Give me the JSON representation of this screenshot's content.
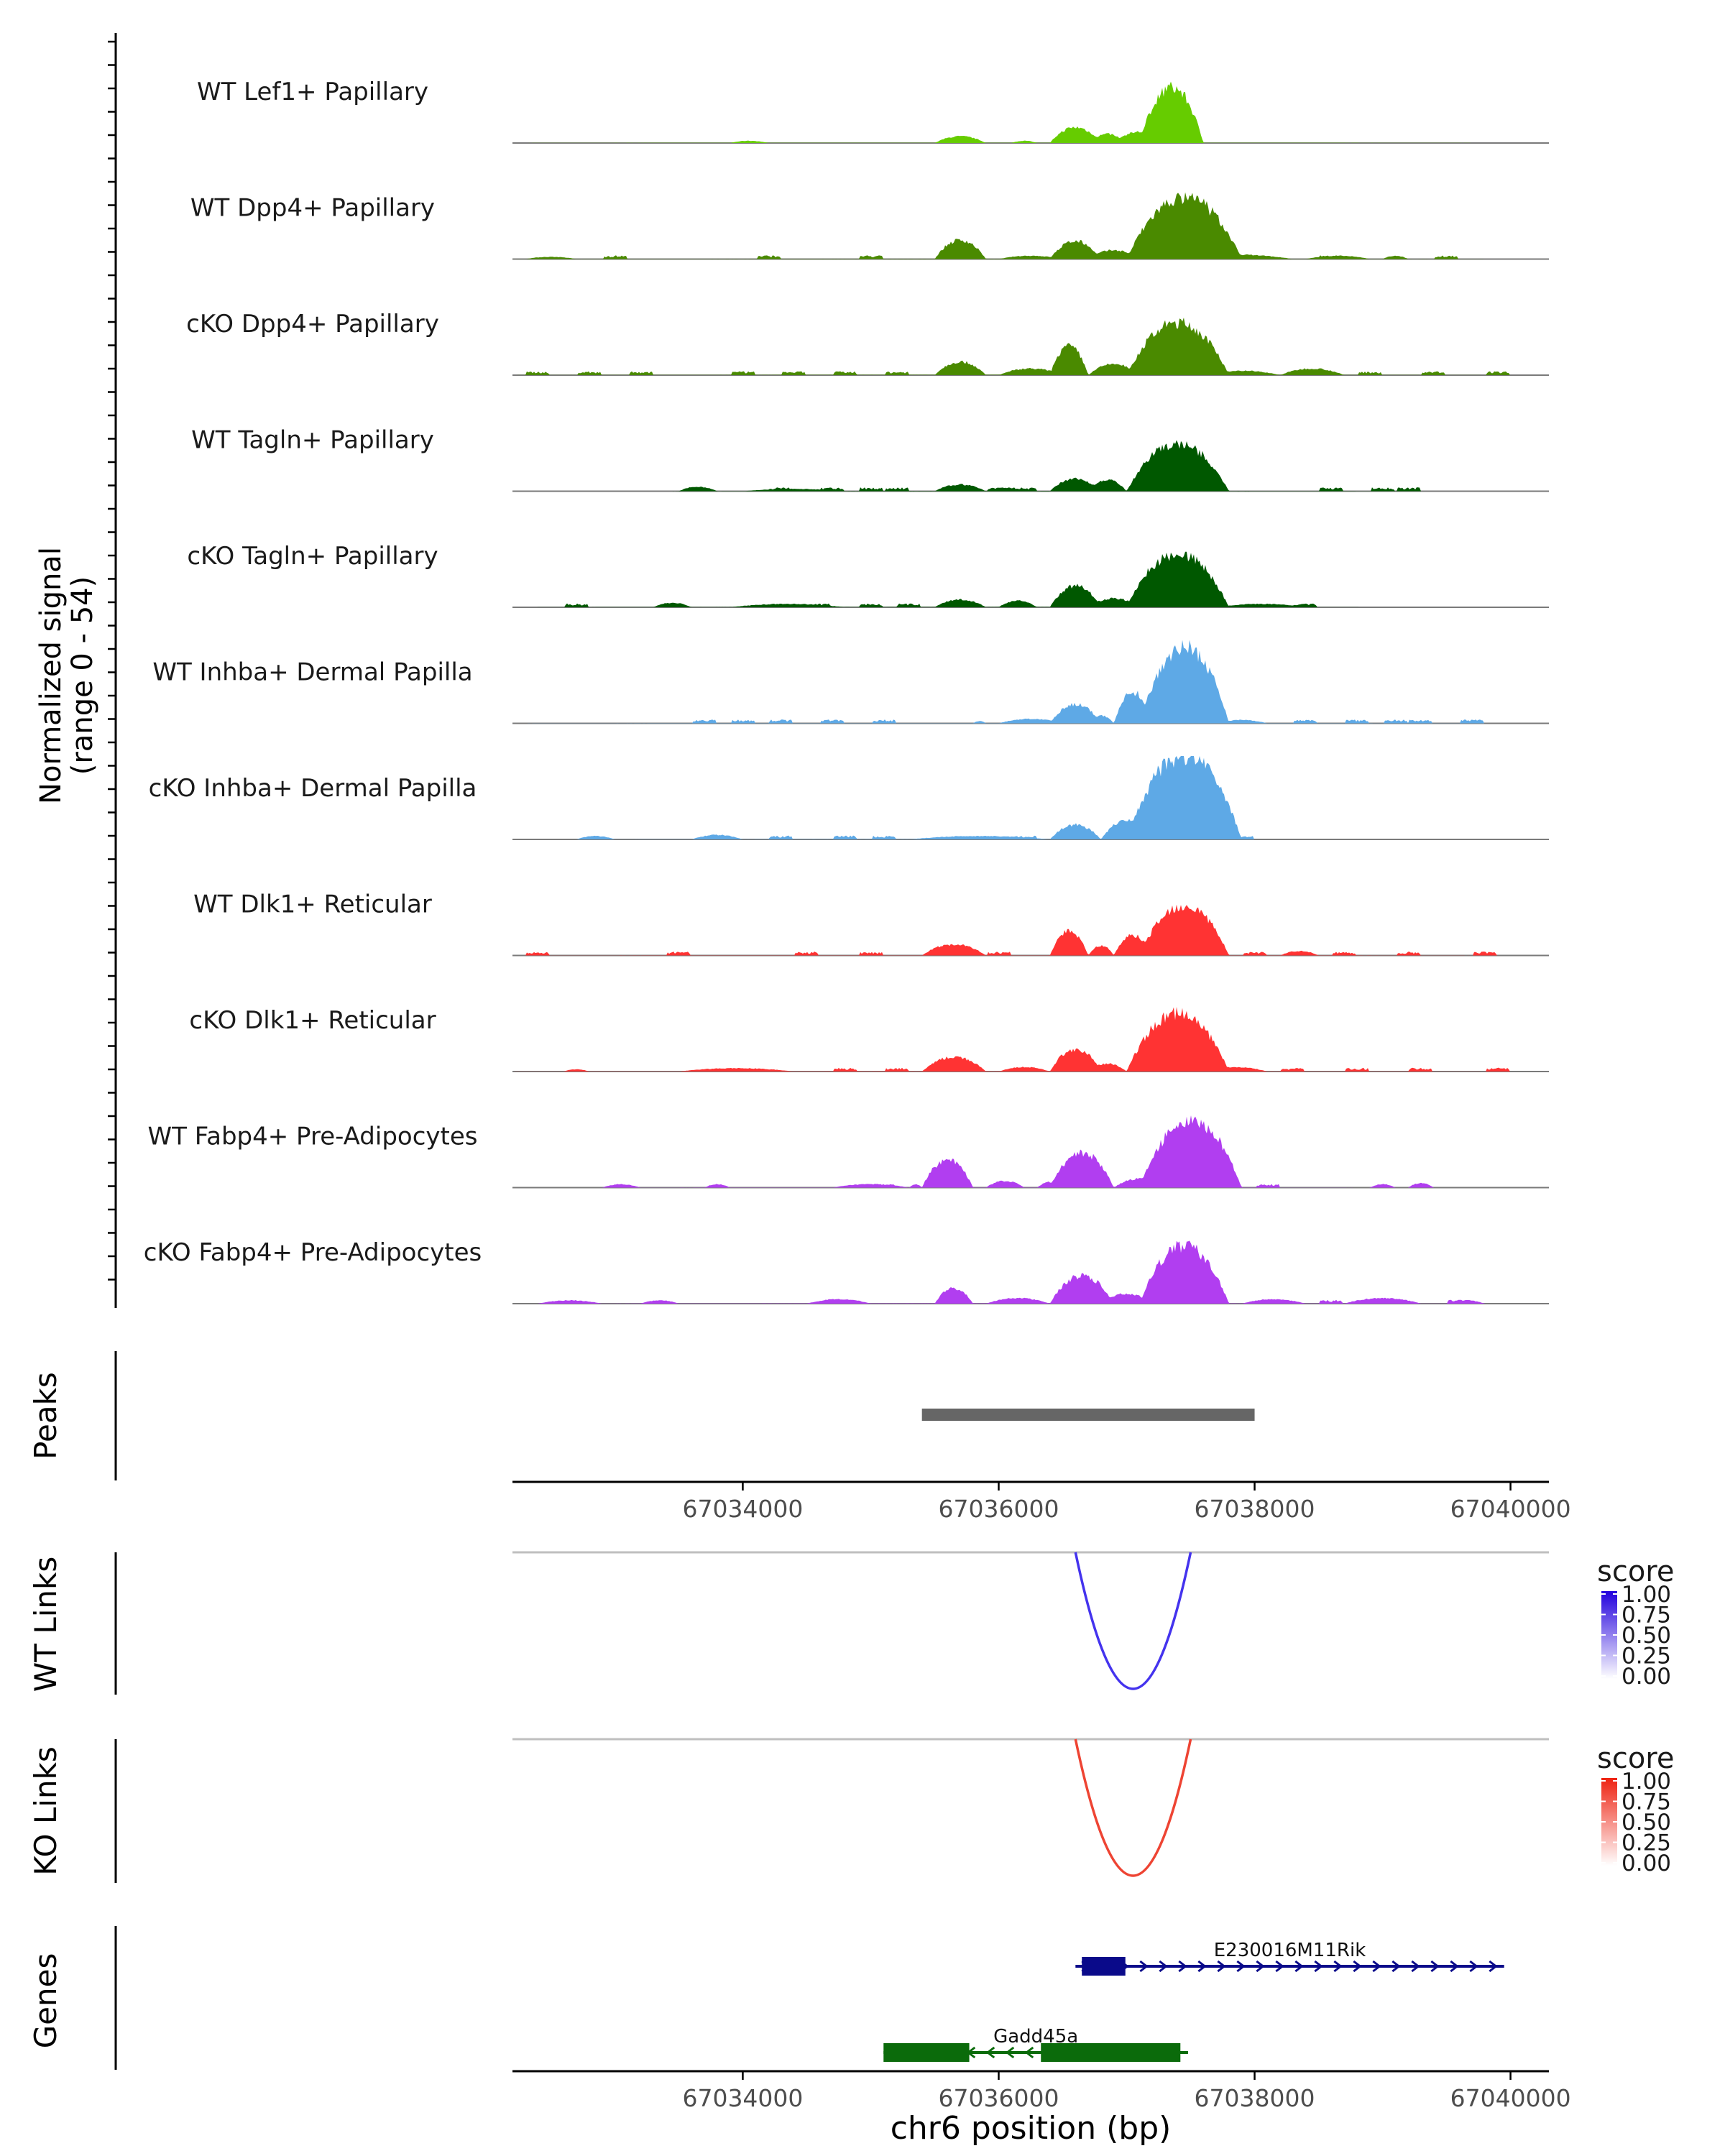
{
  "chart_data": {
    "type": "coverage",
    "genome": {
      "chromosome": "chr6",
      "xmin": 67032200,
      "xmax": 67040300
    },
    "signal_axis_label": "Normalized signal\n(range 0 - 54)",
    "signal_range": [
      0,
      54
    ],
    "tracks": [
      {
        "label": "WT Lef1+ Papillary",
        "color": "#66cc00",
        "regions": [
          [
            67032000,
            67040000,
            0.2
          ],
          [
            67033900,
            67034200,
            2
          ],
          [
            67035500,
            67035900,
            6
          ],
          [
            67036100,
            67036300,
            2
          ],
          [
            67036400,
            67036800,
            14
          ],
          [
            67036700,
            67037000,
            8
          ],
          [
            67037100,
            67037600,
            50
          ],
          [
            67036900,
            67037300,
            10
          ]
        ],
        "noise": []
      },
      {
        "label": "WT Dpp4+ Papillary",
        "color": "#4a8a00",
        "regions": [
          [
            67032000,
            67040000,
            0.3
          ],
          [
            67032300,
            67032700,
            2
          ],
          [
            67035500,
            67035900,
            17
          ],
          [
            67036000,
            67036500,
            3
          ],
          [
            67036400,
            67036800,
            16
          ],
          [
            67036700,
            67037100,
            8
          ],
          [
            67037000,
            67037900,
            55
          ],
          [
            67037400,
            67038300,
            4
          ],
          [
            67038400,
            67038900,
            3
          ],
          [
            67039000,
            67039200,
            3
          ]
        ],
        "noise": [
          67033000,
          67034200,
          67035000,
          67038600,
          67039500
        ]
      },
      {
        "label": "cKO Dpp4+ Papillary",
        "color": "#4a8a00",
        "regions": [
          [
            67032000,
            67040000,
            0.3
          ],
          [
            67035500,
            67035900,
            12
          ],
          [
            67036000,
            67036500,
            6
          ],
          [
            67036400,
            67036700,
            26
          ],
          [
            67036700,
            67037100,
            10
          ],
          [
            67037000,
            67037800,
            47
          ],
          [
            67037600,
            67038200,
            4
          ],
          [
            67038200,
            67038700,
            6
          ]
        ],
        "noise": [
          67032400,
          67032800,
          67033200,
          67034000,
          67034400,
          67034800,
          67035200,
          67038900,
          67039400,
          67039900
        ]
      },
      {
        "label": "WT Tagln+ Papillary",
        "color": "#005800",
        "regions": [
          [
            67033300,
            67039300,
            0.3
          ],
          [
            67033500,
            67033800,
            4
          ],
          [
            67034000,
            67034800,
            2
          ],
          [
            67035500,
            67035900,
            6
          ],
          [
            67035900,
            67036200,
            3
          ],
          [
            67036400,
            67036800,
            11
          ],
          [
            67036700,
            67037000,
            10
          ],
          [
            67037000,
            67037800,
            42
          ],
          [
            67037200,
            67037700,
            38
          ]
        ],
        "noise": [
          67034300,
          67034700,
          67035000,
          67035200,
          67036000,
          67036200,
          67038600,
          67039000,
          67039200
        ]
      },
      {
        "label": "cKO Tagln+ Papillary",
        "color": "#005800",
        "regions": [
          [
            67032200,
            67039000,
            0.3
          ],
          [
            67033300,
            67033600,
            4
          ],
          [
            67033900,
            67034800,
            3
          ],
          [
            67035500,
            67035900,
            7
          ],
          [
            67036000,
            67036300,
            6
          ],
          [
            67036400,
            67036800,
            19
          ],
          [
            67036700,
            67037100,
            8
          ],
          [
            67037000,
            67037800,
            48
          ],
          [
            67037700,
            67038400,
            3
          ]
        ],
        "noise": [
          67032700,
          67034600,
          67035000,
          67035300,
          67038400
        ]
      },
      {
        "label": "WT Inhba+ Dermal Papilla",
        "color": "#5ea9e6",
        "regions": [
          [
            67032000,
            67040000,
            0.2
          ],
          [
            67035800,
            67035900,
            2
          ],
          [
            67036000,
            67036500,
            4
          ],
          [
            67036400,
            67036800,
            17
          ],
          [
            67036700,
            67036900,
            7
          ],
          [
            67036900,
            67037200,
            28
          ],
          [
            67037100,
            67037800,
            69
          ],
          [
            67037700,
            67038100,
            3
          ]
        ],
        "noise": [
          67033700,
          67034000,
          67034300,
          67034700,
          67035100,
          67038400,
          67038800,
          67039100,
          67039300,
          67039700
        ]
      },
      {
        "label": "cKO Inhba+ Dermal Papilla",
        "color": "#5ea9e6",
        "regions": [
          [
            67032700,
            67038000,
            0.3
          ],
          [
            67032700,
            67033000,
            3
          ],
          [
            67033600,
            67034000,
            4
          ],
          [
            67035300,
            67036400,
            3
          ],
          [
            67036400,
            67036800,
            13
          ],
          [
            67036800,
            67037200,
            17
          ],
          [
            67037000,
            67037900,
            75
          ],
          [
            67037200,
            67037500,
            60
          ]
        ],
        "noise": [
          67034300,
          67034800,
          67035100,
          67036200,
          67037900
        ]
      },
      {
        "label": "WT Dlk1+ Reticular",
        "color": "#ff3333",
        "regions": [
          [
            67032000,
            67040000,
            0.2
          ],
          [
            67035400,
            67035900,
            10
          ],
          [
            67036400,
            67036700,
            22
          ],
          [
            67036700,
            67036900,
            9
          ],
          [
            67036900,
            67037200,
            18
          ],
          [
            67037100,
            67037800,
            45
          ],
          [
            67038200,
            67038500,
            4
          ]
        ],
        "noise": [
          67032400,
          67033500,
          67034500,
          67035000,
          67036000,
          67038000,
          67038700,
          67039200,
          67039800
        ]
      },
      {
        "label": "cKO Dlk1+ Reticular",
        "color": "#ff3333",
        "regions": [
          [
            67032000,
            67040000,
            0.3
          ],
          [
            67032600,
            67032800,
            2
          ],
          [
            67033500,
            67034400,
            3
          ],
          [
            67035400,
            67035900,
            13
          ],
          [
            67036000,
            67036400,
            4
          ],
          [
            67036400,
            67036800,
            20
          ],
          [
            67036700,
            67037000,
            7
          ],
          [
            67037000,
            67037800,
            52
          ],
          [
            67037600,
            67038100,
            4
          ]
        ],
        "noise": [
          67034800,
          67035200,
          67038300,
          67038800,
          67039300,
          67039900
        ]
      },
      {
        "label": "WT Fabp4+ Pre-Adipocytes",
        "color": "#b13ef0",
        "regions": [
          [
            67032700,
            67039000,
            0.2
          ],
          [
            67032900,
            67033200,
            3
          ],
          [
            67033700,
            67033900,
            3
          ],
          [
            67034700,
            67035300,
            3
          ],
          [
            67035300,
            67035400,
            3
          ],
          [
            67035400,
            67035800,
            25
          ],
          [
            67035900,
            67036200,
            6
          ],
          [
            67036300,
            67036500,
            5
          ],
          [
            67036400,
            67036900,
            31
          ],
          [
            67036900,
            67037300,
            8
          ],
          [
            67037100,
            67037900,
            60
          ],
          [
            67038900,
            67039100,
            3
          ],
          [
            67039200,
            67039400,
            4
          ]
        ],
        "noise": [
          67035100,
          67036000,
          67038100
        ]
      },
      {
        "label": "cKO Fabp4+ Pre-Adipocytes",
        "color": "#b13ef0",
        "regions": [
          [
            67032400,
            67039800,
            0.3
          ],
          [
            67032400,
            67032900,
            3
          ],
          [
            67033200,
            67033500,
            3
          ],
          [
            67034500,
            67035000,
            4
          ],
          [
            67035500,
            67035800,
            14
          ],
          [
            67035900,
            67036400,
            5
          ],
          [
            67036400,
            67036900,
            25
          ],
          [
            67036800,
            67037200,
            9
          ],
          [
            67037100,
            67037800,
            52
          ],
          [
            67037900,
            67038400,
            4
          ],
          [
            67038700,
            67039300,
            5
          ],
          [
            67039500,
            67039800,
            3
          ]
        ],
        "noise": [
          67036200,
          67038600,
          67039600
        ]
      }
    ],
    "peaks": {
      "label": "Peaks",
      "color": "#666666",
      "ranges": [
        [
          67035400,
          67038000
        ]
      ]
    },
    "links": [
      {
        "label": "WT Links",
        "color": "#4433ee",
        "start": 67036600,
        "end": 67037500,
        "score": 1.0,
        "legend": {
          "title": "score",
          "ticks": [
            "1.00",
            "0.75",
            "0.50",
            "0.25",
            "0.00"
          ],
          "low": "#ffffff",
          "high": "#2200dd"
        }
      },
      {
        "label": "KO Links",
        "color": "#ee4433",
        "start": 67036600,
        "end": 67037500,
        "score": 1.0,
        "legend": {
          "title": "score",
          "ticks": [
            "1.00",
            "0.75",
            "0.50",
            "0.25",
            "0.00"
          ],
          "low": "#ffffff",
          "high": "#ee2211"
        }
      }
    ],
    "genes": {
      "label": "Genes",
      "items": [
        {
          "name": "E230016M11Rik",
          "color": "#0a0a8a",
          "strand": "+",
          "start": 67036600,
          "end": 67039950,
          "exons": [
            [
              67036650,
              67036990
            ]
          ]
        },
        {
          "name": "Gadd45a",
          "color": "#0b6b0b",
          "strand": "-",
          "start": 67035100,
          "end": 67037480,
          "exons": [
            [
              67035100,
              67035770
            ],
            [
              67036330,
              67037420
            ]
          ]
        }
      ]
    },
    "x_ticks": [
      67034000,
      67036000,
      67038000,
      67040000
    ],
    "x_tick_labels": [
      "67034000",
      "67036000",
      "67038000",
      "67040000"
    ],
    "xlabel": "chr6 position (bp)"
  }
}
